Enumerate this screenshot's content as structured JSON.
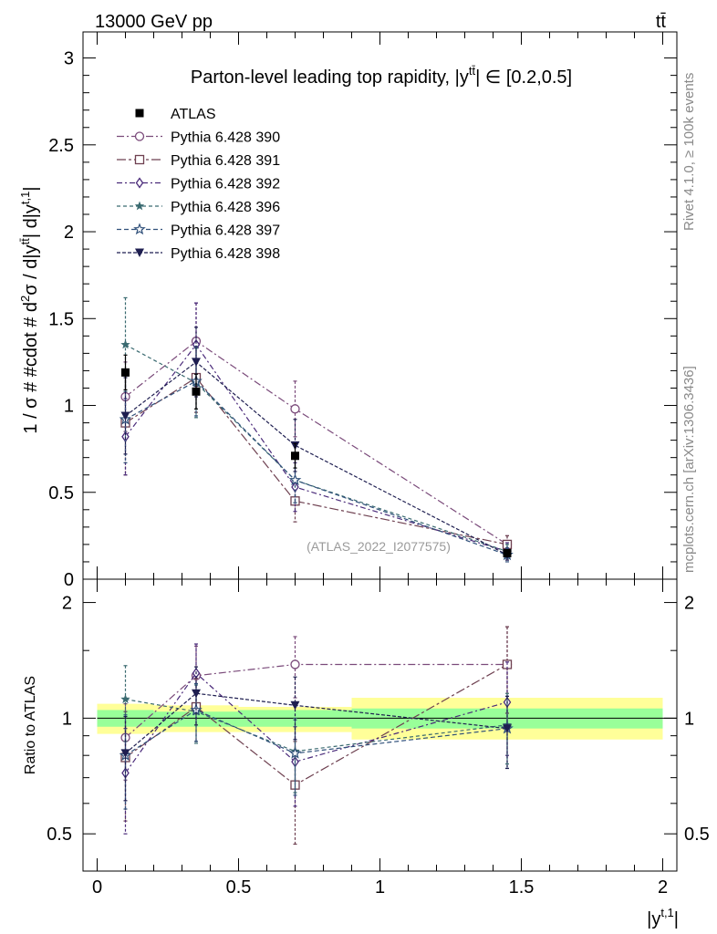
{
  "header": {
    "energy_label": "13000 GeV pp",
    "process_label": "tt̄"
  },
  "side_labels": {
    "rivet": "Rivet 4.1.0, ≥ 100k events",
    "mcplots": "mcplots.cern.ch [arXiv:1306.3436]"
  },
  "colors": {
    "ATLAS": "#000000",
    "p390": "#7a4a7a",
    "p391": "#6e4050",
    "p392": "#4a2a7a",
    "p396": "#3a6a70",
    "p397": "#30507a",
    "p398": "#1e1e50",
    "band_green": "#99ff99",
    "band_yellow": "#ffff99"
  },
  "chart_data": [
    {
      "type": "scatter",
      "panel": "main",
      "title": "Parton-level leading top rapidity, |y^tt̄| ∈ [0.2,0.5]",
      "title_prefix": "Parton-level leading top rapidity, |y",
      "title_sup": "tt̄",
      "title_suffix": "| ∈ [0.2,0.5]",
      "ylabel": "1 / σ # #cdot # d²σ / d|y^tt̄| d|y^t,1|",
      "ylabel_text": "1 / σ # #cdot # d",
      "watermark": "(ATLAS_2022_I2077575)",
      "xlim": [
        -0.05,
        2.05
      ],
      "ylim": [
        0,
        3.15
      ],
      "y_ticks": [
        0,
        0.5,
        1,
        1.5,
        2,
        2.5,
        3
      ],
      "y_tick_labels": [
        "0",
        "0.5",
        "1",
        "1.5",
        "2",
        "2.5",
        "3"
      ],
      "legend_position": "top-left",
      "series": [
        {
          "name": "ATLAS",
          "key": "ATLAS",
          "marker": "square-filled",
          "dash": "",
          "x": [
            0.1,
            0.35,
            0.7,
            1.45
          ],
          "values": [
            1.19,
            1.08,
            0.71,
            0.15
          ],
          "errors": [
            0.1,
            0.1,
            0.07,
            0.02
          ]
        },
        {
          "name": "Pythia 6.428 390",
          "key": "p390",
          "marker": "circle-open",
          "dash": "8,3,2,3",
          "x": [
            0.1,
            0.35,
            0.7,
            1.45
          ],
          "values": [
            1.05,
            1.37,
            0.98,
            0.2
          ],
          "errors": [
            0.2,
            0.22,
            0.16,
            0.05
          ]
        },
        {
          "name": "Pythia 6.428 391",
          "key": "p391",
          "marker": "square-open",
          "dash": "10,3,3,3",
          "x": [
            0.1,
            0.35,
            0.7,
            1.45
          ],
          "values": [
            0.9,
            1.16,
            0.45,
            0.2
          ],
          "errors": [
            0.3,
            0.2,
            0.12,
            0.05
          ]
        },
        {
          "name": "Pythia 6.428 392",
          "key": "p392",
          "marker": "diamond-open",
          "dash": "6,3,2,3",
          "x": [
            0.1,
            0.35,
            0.7,
            1.45
          ],
          "values": [
            0.82,
            1.35,
            0.53,
            0.16
          ],
          "errors": [
            0.22,
            0.24,
            0.14,
            0.05
          ]
        },
        {
          "name": "Pythia 6.428 396",
          "key": "p396",
          "marker": "star-filled",
          "dash": "4,3",
          "x": [
            0.1,
            0.35,
            0.7,
            1.45
          ],
          "values": [
            1.35,
            1.13,
            0.57,
            0.16
          ],
          "errors": [
            0.27,
            0.2,
            0.13,
            0.04
          ]
        },
        {
          "name": "Pythia 6.428 397",
          "key": "p397",
          "marker": "star-open",
          "dash": "5,3",
          "x": [
            0.1,
            0.35,
            0.7,
            1.45
          ],
          "values": [
            0.92,
            1.14,
            0.57,
            0.14
          ],
          "errors": [
            0.25,
            0.2,
            0.13,
            0.04
          ]
        },
        {
          "name": "Pythia 6.428 398",
          "key": "p398",
          "marker": "triangle-down-filled",
          "dash": "4,2",
          "x": [
            0.1,
            0.35,
            0.7,
            1.45
          ],
          "values": [
            0.94,
            1.25,
            0.77,
            0.14
          ],
          "errors": [
            0.22,
            0.2,
            0.15,
            0.03
          ]
        }
      ]
    },
    {
      "type": "scatter",
      "panel": "ratio",
      "ylabel": "Ratio to ATLAS",
      "xlabel": "|y^t,1|",
      "xlabel_base": "|y",
      "xlabel_sup": "t,1",
      "xlabel_close": "|",
      "xlim": [
        -0.05,
        2.05
      ],
      "ylim": [
        0.4,
        2.3
      ],
      "x_ticks": [
        0,
        0.5,
        1,
        1.5,
        2
      ],
      "x_tick_labels": [
        "0",
        "0.5",
        "1",
        "1.5",
        "2"
      ],
      "y_ticks": [
        0.5,
        1,
        2
      ],
      "y_tick_labels": [
        "0.5",
        "1",
        "2"
      ],
      "bands": [
        {
          "x": [
            0,
            0.2
          ],
          "green": [
            0.95,
            1.05
          ],
          "yellow": [
            0.91,
            1.09
          ]
        },
        {
          "x": [
            0.2,
            0.5
          ],
          "green": [
            0.95,
            1.04
          ],
          "yellow": [
            0.92,
            1.08
          ]
        },
        {
          "x": [
            0.5,
            0.9
          ],
          "green": [
            0.95,
            1.05
          ],
          "yellow": [
            0.92,
            1.07
          ]
        },
        {
          "x": [
            0.9,
            2.0
          ],
          "green": [
            0.94,
            1.06
          ],
          "yellow": [
            0.88,
            1.13
          ]
        }
      ],
      "series": [
        {
          "key": "p390",
          "values": [
            0.89,
            1.29,
            1.38,
            1.38
          ],
          "errors": [
            0.2,
            0.25,
            0.25,
            0.35
          ]
        },
        {
          "key": "p391",
          "values": [
            0.79,
            1.07,
            0.67,
            1.38
          ],
          "errors": [
            0.25,
            0.2,
            0.2,
            0.35
          ]
        },
        {
          "key": "p392",
          "values": [
            0.72,
            1.31,
            0.77,
            1.1
          ],
          "errors": [
            0.22,
            0.25,
            0.18,
            0.3
          ]
        },
        {
          "key": "p396",
          "values": [
            1.12,
            1.04,
            0.82,
            0.96
          ],
          "errors": [
            0.25,
            0.18,
            0.18,
            0.2
          ]
        },
        {
          "key": "p397",
          "values": [
            0.8,
            1.05,
            0.81,
            0.94
          ],
          "errors": [
            0.22,
            0.18,
            0.18,
            0.2
          ]
        },
        {
          "key": "p398",
          "values": [
            0.81,
            1.16,
            1.08,
            0.94
          ],
          "errors": [
            0.2,
            0.2,
            0.2,
            0.2
          ]
        }
      ]
    }
  ]
}
